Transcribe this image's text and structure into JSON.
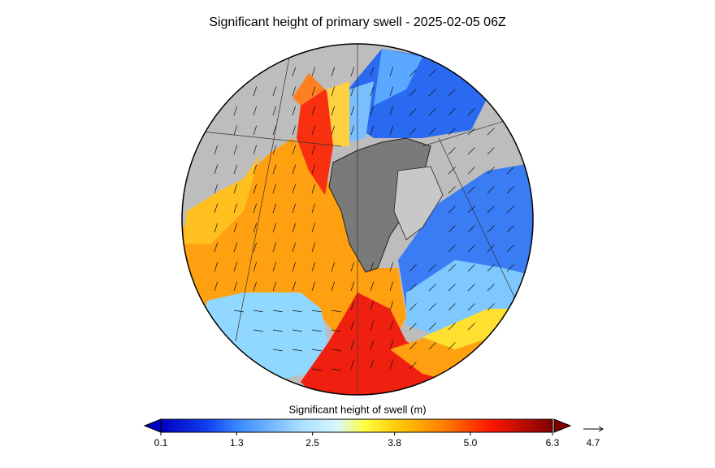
{
  "map": {
    "title": "Significant height of primary swell - 2025-02-05 06Z",
    "colorbar": {
      "label": "Significant height of swell (m)",
      "range": [
        0.1,
        6.3
      ],
      "ticks": [
        0.1,
        1.3,
        2.5,
        3.8,
        {
          "value": 5,
          "label": "5.0"
        },
        6.3
      ]
    },
    "vector_key": {
      "label": "4.7"
    }
  }
}
